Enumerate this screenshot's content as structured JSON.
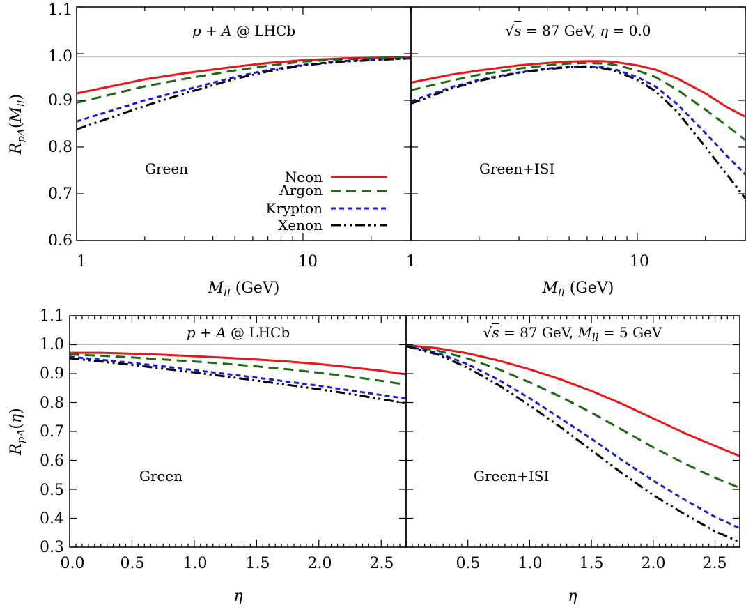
{
  "colors": {
    "neon": "#e8171b",
    "argon": "#1c6b14",
    "krypton": "#1a1ae6",
    "xenon": "#000000"
  },
  "legend": {
    "placement": "lower-right of top-left panel",
    "entries": [
      {
        "key": "neon",
        "label": "Neon",
        "dash": "solid"
      },
      {
        "key": "argon",
        "label": "Argon",
        "dash": "dash"
      },
      {
        "key": "krypton",
        "label": "Krypton",
        "dash": "short-dash"
      },
      {
        "key": "xenon",
        "label": "Xenon",
        "dash": "dash-dot-dot"
      }
    ]
  },
  "chart_data": [
    {
      "type": "line",
      "title": "p + A @ LHCb",
      "label": "Green",
      "xlabel": "M_ll (GeV)",
      "ylabel": "R_pA(M_ll)",
      "xscale": "log",
      "xlim": [
        1,
        30
      ],
      "ylim": [
        0.6,
        1.1
      ],
      "xticks": [
        "1",
        "10"
      ],
      "yticks": [
        "0.6",
        "0.7",
        "0.8",
        "0.9",
        "1.0",
        "1.1"
      ],
      "reference_line": 1.0,
      "x": [
        1,
        2,
        3,
        5,
        7,
        10,
        15,
        20,
        30
      ],
      "series": [
        {
          "name": "Neon",
          "key": "neon",
          "values": [
            0.915,
            0.945,
            0.958,
            0.972,
            0.98,
            0.986,
            0.99,
            0.991,
            0.993
          ]
        },
        {
          "name": "Argon",
          "key": "argon",
          "values": [
            0.895,
            0.93,
            0.946,
            0.964,
            0.974,
            0.983,
            0.988,
            0.99,
            0.993
          ]
        },
        {
          "name": "Krypton",
          "key": "krypton",
          "values": [
            0.855,
            0.9,
            0.922,
            0.95,
            0.965,
            0.976,
            0.984,
            0.987,
            0.99
          ]
        },
        {
          "name": "Xenon",
          "key": "xenon",
          "values": [
            0.838,
            0.888,
            0.915,
            0.946,
            0.962,
            0.975,
            0.983,
            0.986,
            0.99
          ]
        }
      ]
    },
    {
      "type": "line",
      "title": "√s = 87 GeV, η = 0.0",
      "label": "Green+ISI",
      "xlabel": "M_ll (GeV)",
      "ylabel": "",
      "xscale": "log",
      "xlim": [
        1,
        30
      ],
      "ylim": [
        0.6,
        1.1
      ],
      "xticks": [
        "1",
        "10"
      ],
      "yticks": [],
      "reference_line": 1.0,
      "x": [
        1,
        1.5,
        2,
        3,
        4,
        5,
        6,
        7,
        8,
        10,
        12,
        15,
        20,
        25,
        30
      ],
      "series": [
        {
          "name": "Neon",
          "key": "neon",
          "values": [
            0.938,
            0.955,
            0.964,
            0.975,
            0.98,
            0.983,
            0.984,
            0.984,
            0.982,
            0.975,
            0.966,
            0.947,
            0.915,
            0.885,
            0.865
          ]
        },
        {
          "name": "Argon",
          "key": "argon",
          "values": [
            0.922,
            0.942,
            0.955,
            0.968,
            0.975,
            0.979,
            0.98,
            0.979,
            0.976,
            0.964,
            0.95,
            0.923,
            0.88,
            0.845,
            0.815
          ]
        },
        {
          "name": "Krypton",
          "key": "krypton",
          "values": [
            0.898,
            0.928,
            0.944,
            0.96,
            0.968,
            0.972,
            0.973,
            0.971,
            0.966,
            0.95,
            0.93,
            0.892,
            0.83,
            0.78,
            0.742
          ]
        },
        {
          "name": "Xenon",
          "key": "xenon",
          "values": [
            0.893,
            0.925,
            0.942,
            0.959,
            0.967,
            0.971,
            0.972,
            0.969,
            0.963,
            0.944,
            0.92,
            0.876,
            0.8,
            0.74,
            0.69
          ]
        }
      ]
    },
    {
      "type": "line",
      "title": "p + A @ LHCb",
      "label": "Green",
      "xlabel": "η",
      "ylabel": "R_pA(η)",
      "xscale": "linear",
      "xlim": [
        0,
        2.7
      ],
      "ylim": [
        0.3,
        1.1
      ],
      "xticks": [
        "0.0",
        "0.5",
        "1.0",
        "1.5",
        "2.0",
        "2.5"
      ],
      "yticks": [
        "0.3",
        "0.4",
        "0.5",
        "0.6",
        "0.7",
        "0.8",
        "0.9",
        "1.0",
        "1.1"
      ],
      "reference_line": 1.0,
      "x": [
        0.0,
        0.25,
        0.5,
        0.75,
        1.0,
        1.25,
        1.5,
        1.75,
        2.0,
        2.25,
        2.5,
        2.7
      ],
      "series": [
        {
          "name": "Neon",
          "key": "neon",
          "values": [
            0.972,
            0.972,
            0.969,
            0.965,
            0.96,
            0.955,
            0.949,
            0.942,
            0.933,
            0.922,
            0.91,
            0.897
          ]
        },
        {
          "name": "Argon",
          "key": "argon",
          "values": [
            0.966,
            0.962,
            0.956,
            0.949,
            0.942,
            0.934,
            0.925,
            0.915,
            0.903,
            0.89,
            0.875,
            0.862
          ]
        },
        {
          "name": "Krypton",
          "key": "krypton",
          "values": [
            0.958,
            0.948,
            0.937,
            0.925,
            0.912,
            0.899,
            0.886,
            0.872,
            0.858,
            0.842,
            0.826,
            0.814
          ]
        },
        {
          "name": "Xenon",
          "key": "xenon",
          "values": [
            0.953,
            0.942,
            0.93,
            0.917,
            0.904,
            0.89,
            0.876,
            0.861,
            0.846,
            0.83,
            0.812,
            0.797
          ]
        }
      ]
    },
    {
      "type": "line",
      "title": "√s = 87 GeV, M_ll = 5 GeV",
      "label": "Green+ISI",
      "xlabel": "η",
      "ylabel": "",
      "xscale": "linear",
      "xlim": [
        0,
        2.7
      ],
      "ylim": [
        0.3,
        1.1
      ],
      "xticks": [
        "0.5",
        "1.0",
        "1.5",
        "2.0",
        "2.5"
      ],
      "yticks": [],
      "reference_line": 1.0,
      "x": [
        0.0,
        0.25,
        0.5,
        0.75,
        1.0,
        1.25,
        1.5,
        1.75,
        2.0,
        2.25,
        2.5,
        2.7
      ],
      "series": [
        {
          "name": "Neon",
          "key": "neon",
          "values": [
            0.998,
            0.988,
            0.97,
            0.945,
            0.915,
            0.88,
            0.84,
            0.795,
            0.745,
            0.695,
            0.65,
            0.615
          ]
        },
        {
          "name": "Argon",
          "key": "argon",
          "values": [
            0.996,
            0.98,
            0.952,
            0.915,
            0.87,
            0.82,
            0.765,
            0.705,
            0.645,
            0.59,
            0.54,
            0.505
          ]
        },
        {
          "name": "Krypton",
          "key": "krypton",
          "values": [
            0.995,
            0.972,
            0.932,
            0.878,
            0.815,
            0.745,
            0.675,
            0.6,
            0.53,
            0.465,
            0.405,
            0.365
          ]
        },
        {
          "name": "Xenon",
          "key": "xenon",
          "values": [
            0.995,
            0.967,
            0.92,
            0.86,
            0.79,
            0.715,
            0.635,
            0.555,
            0.48,
            0.415,
            0.355,
            0.318
          ]
        }
      ]
    }
  ]
}
